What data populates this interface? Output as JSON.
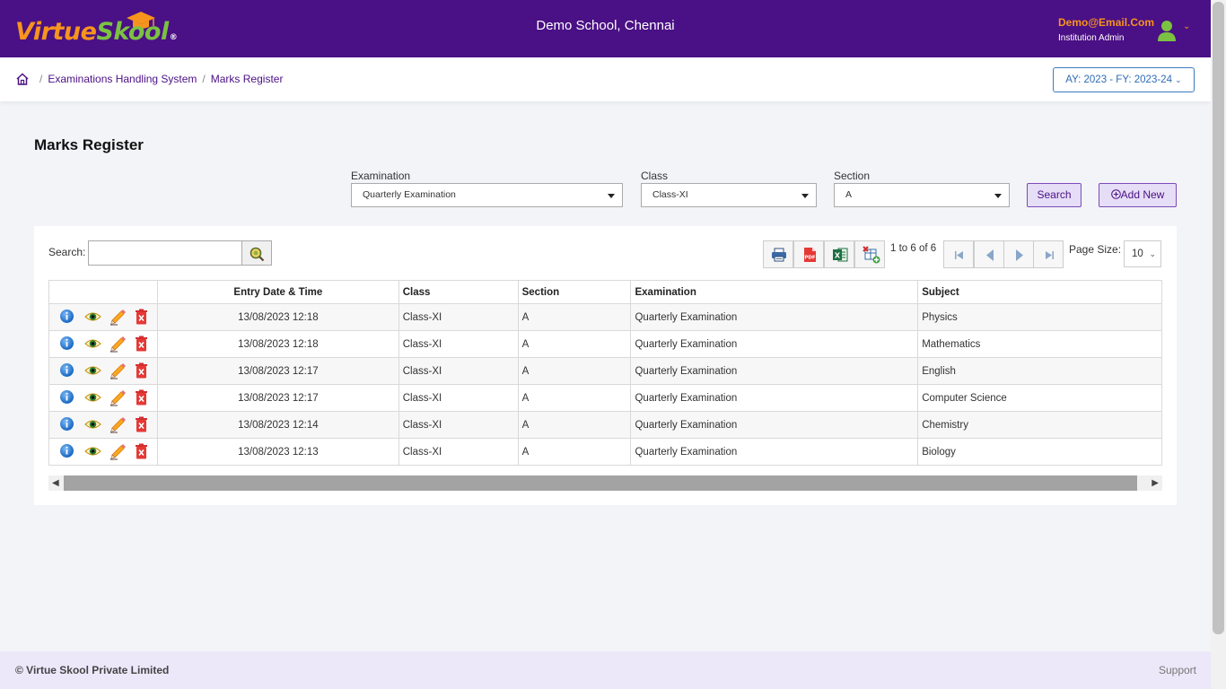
{
  "app": {
    "logo_part1": "Virtue",
    "logo_part2": "Skool",
    "logo_reg": "®",
    "school_name": "Demo School, Chennai",
    "user_email": "Demo@Email.Com",
    "user_role": "Institution Admin"
  },
  "breadcrumb": {
    "items": [
      "Examinations Handling System",
      "Marks Register"
    ],
    "separator": "/"
  },
  "academic_year": "AY: 2023 - FY: 2023-24",
  "page": {
    "title": "Marks Register"
  },
  "filters": {
    "examination_label": "Examination",
    "examination_value": "Quarterly Examination",
    "class_label": "Class",
    "class_value": "Class-XI",
    "section_label": "Section",
    "section_value": "A",
    "search_button": "Search",
    "add_new_button": "Add New"
  },
  "grid_toolbar": {
    "search_label": "Search:",
    "search_value": "",
    "paging_info": "1 to 6 of 6",
    "page_size_label": "Page Size:",
    "page_size_value": "10"
  },
  "table": {
    "columns": [
      "",
      "Entry Date & Time",
      "Class",
      "Section",
      "Examination",
      "Subject"
    ],
    "rows": [
      {
        "datetime": "13/08/2023 12:18",
        "class": "Class-XI",
        "section": "A",
        "examination": "Quarterly Examination",
        "subject": "Physics"
      },
      {
        "datetime": "13/08/2023 12:18",
        "class": "Class-XI",
        "section": "A",
        "examination": "Quarterly Examination",
        "subject": "Mathematics"
      },
      {
        "datetime": "13/08/2023 12:17",
        "class": "Class-XI",
        "section": "A",
        "examination": "Quarterly Examination",
        "subject": "English"
      },
      {
        "datetime": "13/08/2023 12:17",
        "class": "Class-XI",
        "section": "A",
        "examination": "Quarterly Examination",
        "subject": "Computer Science"
      },
      {
        "datetime": "13/08/2023 12:14",
        "class": "Class-XI",
        "section": "A",
        "examination": "Quarterly Examination",
        "subject": "Chemistry"
      },
      {
        "datetime": "13/08/2023 12:13",
        "class": "Class-XI",
        "section": "A",
        "examination": "Quarterly Examination",
        "subject": "Biology"
      }
    ]
  },
  "footer": {
    "copyright": "© Virtue Skool Private Limited",
    "support": "Support"
  },
  "colors": {
    "header_bg": "#4a1085",
    "logo_orange": "#f7941d",
    "logo_green": "#7cc242",
    "footer_bg": "#ece8fa"
  },
  "icons": {
    "row_actions": [
      "info-icon",
      "view-eye-icon",
      "edit-pencil-icon",
      "delete-icon"
    ],
    "exports": [
      "print-icon",
      "pdf-icon",
      "excel-icon",
      "export-columns-icon"
    ],
    "pager": [
      "first-page-icon",
      "previous-page-icon",
      "next-page-icon",
      "last-page-icon"
    ]
  }
}
